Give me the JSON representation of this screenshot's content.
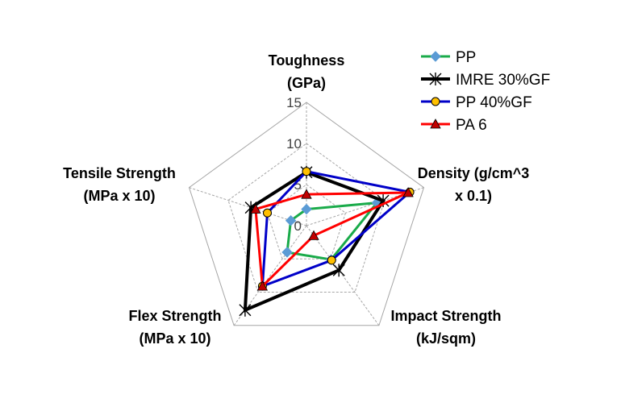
{
  "chart_data": {
    "type": "radar",
    "axes": [
      {
        "lines": [
          "Toughness",
          "(GPa)"
        ]
      },
      {
        "lines": [
          "Density (g/cm^3",
          "x 0.1)"
        ]
      },
      {
        "lines": [
          "Impact Strength",
          "(kJ/sqm)"
        ]
      },
      {
        "lines": [
          "Flex Strength",
          "(MPa x 10)"
        ]
      },
      {
        "lines": [
          "Tensile Strength",
          "(MPa x 10)"
        ]
      }
    ],
    "rmin": 0,
    "rmax": 15,
    "ticks": [
      "0",
      "5",
      "10",
      "15"
    ],
    "tick_values": [
      0,
      5,
      10,
      15
    ],
    "grid": true,
    "legend_position": "top-right",
    "series": [
      {
        "name": "PP",
        "values": [
          2.0,
          9.0,
          5.1,
          4.0,
          2.0
        ],
        "color": "#1aab4a",
        "marker": "diamond",
        "marker_color": "#5b9bd5"
      },
      {
        "name": "IMRE 30%GF",
        "values": [
          6.5,
          9.8,
          6.7,
          12.7,
          7.1
        ],
        "color": "#000000",
        "marker": "asterisk",
        "marker_color": "#000000"
      },
      {
        "name": "PP 40%GF",
        "values": [
          6.6,
          13.2,
          5.2,
          9.1,
          5.0
        ],
        "color": "#0000c8",
        "marker": "circle",
        "marker_color": "#ffc000"
      },
      {
        "name": "PA 6",
        "values": [
          3.8,
          13.0,
          1.5,
          9.1,
          6.5
        ],
        "color": "#ff0000",
        "marker": "triangle",
        "marker_color": "#c00000"
      }
    ]
  }
}
